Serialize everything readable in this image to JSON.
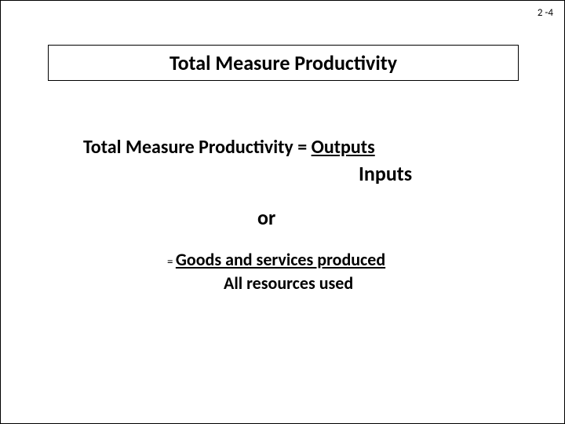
{
  "page_number": "2 -4",
  "title": "Total Measure Productivity",
  "formula1": {
    "lhs": "Total Measure Productivity = ",
    "numerator": "Outputs",
    "denominator": "Inputs"
  },
  "connector": "or",
  "formula2": {
    "equals": "= ",
    "numerator": "Goods and services produced",
    "denominator": "All resources used"
  },
  "colors": {
    "text": "#000000",
    "background": "#ffffff",
    "border": "#000000"
  },
  "typography": {
    "title_fontsize": 26,
    "body_fontsize": 24,
    "page_number_fontsize": 13,
    "font_family": "Calibri",
    "weight": "bold"
  }
}
